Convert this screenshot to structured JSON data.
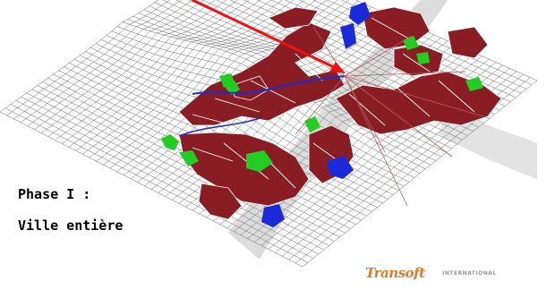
{
  "captions": {
    "line1": "Phase I :",
    "line2": "Ville entière"
  },
  "logo": {
    "name": "Transoft",
    "subtitle": "INTERNATIONAL"
  },
  "colors": {
    "urban_blocks": "#8a1d24",
    "green_areas": "#22cc22",
    "water": "#1a2ad8",
    "arrow": "#ee1111",
    "grid_lines": "#3a3a3a",
    "road_lines": "#b06060"
  },
  "icons": {
    "pointer": "red-arrow",
    "brand": "transoft-logo"
  }
}
